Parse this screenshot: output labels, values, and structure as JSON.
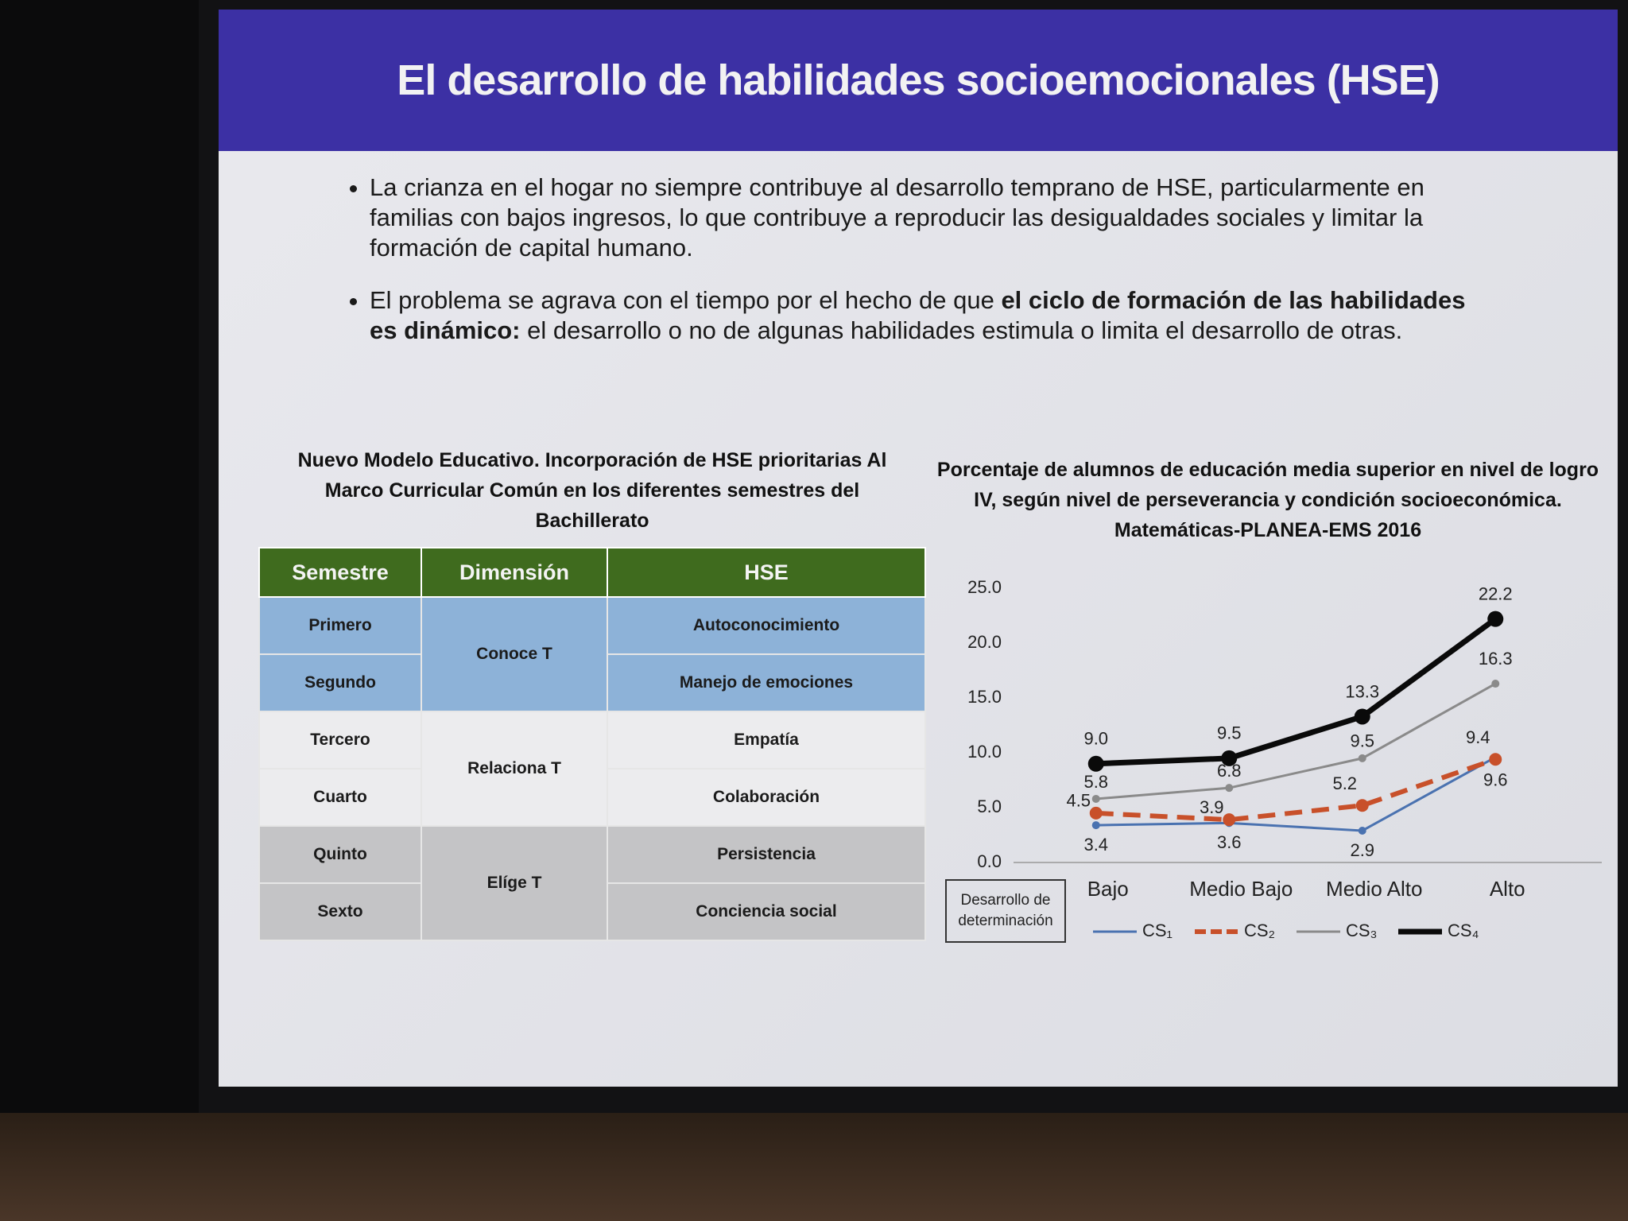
{
  "slide": {
    "title": "El desarrollo de habilidades socioemocionales (HSE)",
    "bullets": [
      {
        "text": "La crianza en el hogar no siempre contribuye al desarrollo temprano de HSE, particularmente en familias con bajos ingresos, lo que contribuye a reproducir las desigualdades sociales y limitar la formación de capital humano."
      },
      {
        "before": "El problema se agrava con el tiempo por el hecho de que ",
        "bold": "el ciclo de formación de las habilidades es dinámico:",
        "after": " el desarrollo o no de algunas habilidades estimula o limita el desarrollo de otras."
      }
    ]
  },
  "table": {
    "title": "Nuevo Modelo Educativo. Incorporación de HSE prioritarias Al Marco Curricular Común en los diferentes semestres del Bachillerato",
    "header": [
      "Semestre",
      "Dimensión",
      "HSE"
    ],
    "semestres": [
      "Primero",
      "Segundo",
      "Tercero",
      "Cuarto",
      "Quinto",
      "Sexto"
    ],
    "dimensiones": [
      "Conoce T",
      "Relaciona T",
      "Elíge T"
    ],
    "hse": [
      "Autoconocimiento",
      "Manejo de emociones",
      "Empatía",
      "Colaboración",
      "Persistencia",
      "Conciencia social"
    ]
  },
  "chart_data": {
    "type": "line",
    "title": "Porcentaje de alumnos de educación media superior en nivel de logro IV, según nivel de perseverancia y condición socioeconómica. Matemáticas-PLANEA-EMS 2016",
    "x_label": "Desarrollo de determinación",
    "categories": [
      "Bajo",
      "Medio Bajo",
      "Medio Alto",
      "Alto"
    ],
    "ylim": [
      0,
      25
    ],
    "yticks": [
      {
        "value": 0,
        "label": "0.0"
      },
      {
        "value": 5,
        "label": "5.0"
      },
      {
        "value": 10,
        "label": "10.0"
      },
      {
        "value": 15,
        "label": "15.0"
      },
      {
        "value": 20,
        "label": "20.0"
      },
      {
        "value": 25,
        "label": "25.0"
      }
    ],
    "grid": false,
    "legend": "bottom",
    "series": [
      {
        "name": "CS₁",
        "color": "#4a72b0",
        "values": [
          3.4,
          3.6,
          2.9,
          9.6
        ],
        "value_labels": [
          "3.4",
          "3.6",
          "2.9",
          "9.6"
        ]
      },
      {
        "name": "CS₂",
        "color": "#c8502a",
        "values": [
          4.5,
          3.9,
          5.2,
          9.4
        ],
        "value_labels": [
          "4.5",
          "3.9",
          "5.2",
          "9.4"
        ]
      },
      {
        "name": "CS₃",
        "color": "#8a8a8a",
        "values": [
          5.8,
          6.8,
          9.5,
          16.3
        ],
        "value_labels": [
          "5.8",
          "6.8",
          "9.5",
          "16.3"
        ]
      },
      {
        "name": "CS₄",
        "color": "#0a0a0a",
        "values": [
          9.0,
          9.5,
          13.3,
          22.2
        ],
        "value_labels": [
          "9.0",
          "9.5",
          "13.3",
          "22.2"
        ]
      }
    ]
  }
}
